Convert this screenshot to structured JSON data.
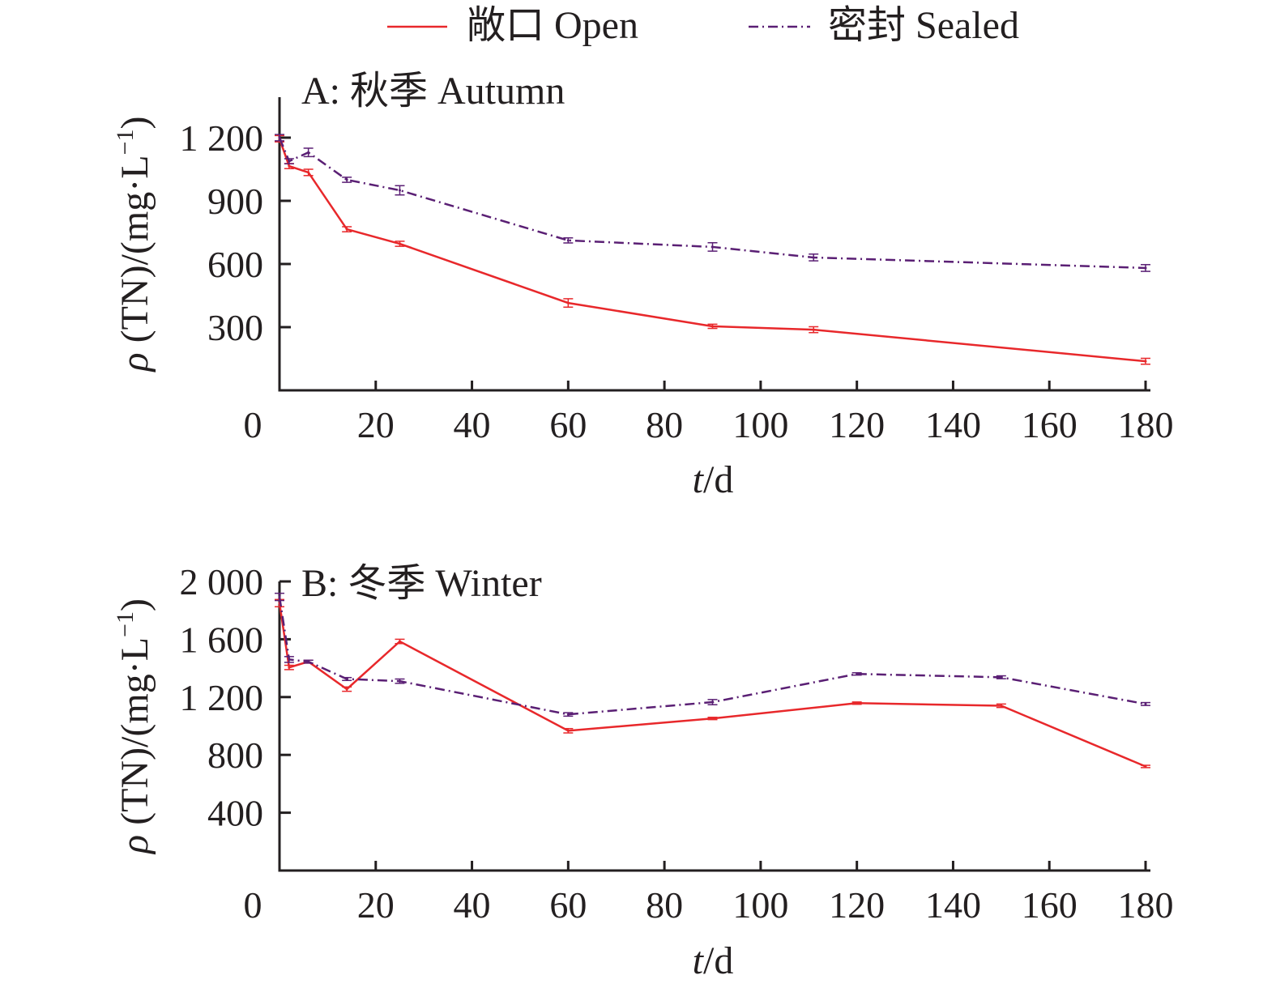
{
  "legend": [
    {
      "label": "敞口 Open",
      "color": "#e8282b",
      "dash": "solid"
    },
    {
      "label": "密封 Sealed",
      "color": "#5a1f74",
      "dash": "dashdot"
    }
  ],
  "chart_data": [
    {
      "type": "line",
      "title": "A: 秋季 Autumn",
      "xlabel_italic": "t",
      "xlabel_rest": "/d",
      "ylabel_italic": "ρ",
      "ylabel_rest": " (TN)/(mg·L",
      "ylabel_sup": "−1",
      "ylabel_end": ")",
      "xlim": [
        0,
        180
      ],
      "ylim": [
        0,
        1300
      ],
      "xticks": [
        0,
        20,
        40,
        60,
        80,
        100,
        120,
        140,
        160,
        180
      ],
      "xtick_labels": [
        "0",
        "20",
        "40",
        "60",
        "80",
        "100",
        "120",
        "140",
        "160",
        "180"
      ],
      "yticks": [
        300,
        600,
        900,
        1200
      ],
      "ytick_labels": [
        "300",
        "600",
        "900",
        "1 200"
      ],
      "x": [
        0,
        2,
        6,
        14,
        25,
        60,
        90,
        111,
        180
      ],
      "series": [
        {
          "name": "敞口 Open",
          "values": [
            1195,
            1065,
            1035,
            765,
            696,
            415,
            304,
            288,
            138
          ],
          "errors": [
            15,
            12,
            15,
            12,
            12,
            20,
            10,
            14,
            14
          ]
        },
        {
          "name": "密封 Sealed",
          "values": [
            1200,
            1088,
            1130,
            1000,
            950,
            712,
            681,
            631,
            581
          ],
          "errors": [
            15,
            12,
            20,
            12,
            22,
            12,
            20,
            16,
            16
          ]
        }
      ]
    },
    {
      "type": "line",
      "title": "B: 冬季 Winter",
      "xlabel_italic": "t",
      "xlabel_rest": "/d",
      "ylabel_italic": "ρ",
      "ylabel_rest": " (TN)/(mg·L",
      "ylabel_sup": "−1",
      "ylabel_end": ")",
      "xlim": [
        0,
        180
      ],
      "ylim": [
        0,
        2000
      ],
      "xticks": [
        0,
        20,
        40,
        60,
        80,
        100,
        120,
        140,
        160,
        180
      ],
      "xtick_labels": [
        "0",
        "20",
        "40",
        "60",
        "80",
        "100",
        "120",
        "140",
        "160",
        "180"
      ],
      "yticks": [
        400,
        800,
        1200,
        1600,
        2000
      ],
      "ytick_labels": [
        "400",
        "800",
        "1 200",
        "1 600",
        "2 000"
      ],
      "x": [
        0,
        2,
        6,
        14,
        25,
        60,
        90,
        120,
        150,
        180
      ],
      "series": [
        {
          "name": "敞口 Open",
          "values": [
            1850,
            1405,
            1445,
            1255,
            1585,
            967,
            1052,
            1158,
            1140,
            720
          ],
          "errors": [
            25,
            15,
            10,
            15,
            15,
            15,
            8,
            8,
            12,
            8
          ]
        },
        {
          "name": "密封 Sealed",
          "values": [
            1893,
            1460,
            1445,
            1325,
            1310,
            1080,
            1165,
            1360,
            1337,
            1152
          ],
          "errors": [
            25,
            20,
            10,
            10,
            15,
            12,
            18,
            8,
            10,
            10
          ]
        }
      ]
    }
  ]
}
